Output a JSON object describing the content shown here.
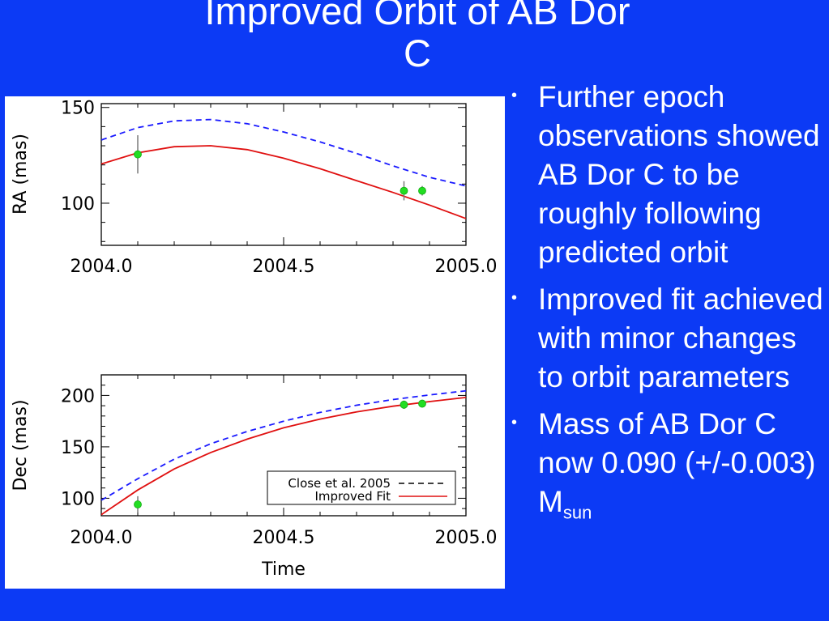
{
  "slide": {
    "title_line1": "Improved Orbit of AB Dor",
    "title_line2": "C",
    "background_color": "#0c3af5",
    "bullet_marker": "•",
    "bullets": [
      {
        "text": "Further epoch observations showed AB Dor C to be roughly following predicted orbit"
      },
      {
        "text": "Improved fit achieved with minor changes to orbit parameters"
      },
      {
        "text_before": "Mass of AB Dor C now 0.090 (+/-0.003) M",
        "subscript": "sun"
      }
    ]
  },
  "chart_data": [
    {
      "type": "line",
      "xlabel": "",
      "ylabel": "RA (mas)",
      "xlim": [
        2004.0,
        2005.0
      ],
      "ylim": [
        78,
        152
      ],
      "x_ticks": [
        "2004.0",
        "2004.5",
        "2005.0"
      ],
      "y_ticks": [
        "100",
        "150"
      ],
      "series": [
        {
          "name": "Close et al. 2005",
          "style": "dashed",
          "color": "#1a1aff",
          "x": [
            2004.0,
            2004.1,
            2004.2,
            2004.3,
            2004.4,
            2004.5,
            2004.6,
            2004.7,
            2004.8,
            2004.9,
            2005.0
          ],
          "y": [
            133.0,
            139.5,
            143.0,
            143.7,
            141.5,
            137.2,
            132.0,
            126.0,
            119.5,
            113.5,
            109.0
          ]
        },
        {
          "name": "Improved Fit",
          "style": "solid",
          "color": "#e01010",
          "x": [
            2004.0,
            2004.1,
            2004.2,
            2004.3,
            2004.4,
            2004.5,
            2004.6,
            2004.7,
            2004.8,
            2004.9,
            2005.0
          ],
          "y": [
            120.5,
            126.3,
            129.5,
            130.0,
            128.0,
            123.5,
            118.0,
            111.8,
            105.6,
            99.0,
            92.0
          ]
        }
      ],
      "points": [
        {
          "x": 2004.1,
          "y": 125.5,
          "yerr": 10
        },
        {
          "x": 2004.83,
          "y": 106.5,
          "yerr": 5
        },
        {
          "x": 2004.88,
          "y": 106.5,
          "yerr": 2.5
        }
      ]
    },
    {
      "type": "line",
      "xlabel": "Time",
      "ylabel": "Dec (mas)",
      "xlim": [
        2004.0,
        2005.0
      ],
      "ylim": [
        83,
        220
      ],
      "x_ticks": [
        "2004.0",
        "2004.5",
        "2005.0"
      ],
      "y_ticks": [
        "100",
        "150",
        "200"
      ],
      "legend": "lower right",
      "series": [
        {
          "name": "Close et al. 2005",
          "style": "dashed",
          "color": "#1a1aff",
          "x": [
            2004.0,
            2004.1,
            2004.2,
            2004.3,
            2004.4,
            2004.5,
            2004.6,
            2004.7,
            2004.8,
            2004.9,
            2005.0
          ],
          "y": [
            98.0,
            119.0,
            138.0,
            153.0,
            165.0,
            175.0,
            183.5,
            190.5,
            196.0,
            200.5,
            204.5
          ]
        },
        {
          "name": "Improved Fit",
          "style": "solid",
          "color": "#e01010",
          "x": [
            2004.0,
            2004.1,
            2004.2,
            2004.3,
            2004.4,
            2004.5,
            2004.6,
            2004.7,
            2004.8,
            2004.9,
            2005.0
          ],
          "y": [
            84.0,
            108.0,
            128.5,
            144.5,
            157.5,
            168.5,
            177.0,
            184.0,
            189.5,
            194.0,
            198.0
          ]
        }
      ],
      "points": [
        {
          "x": 2004.1,
          "y": 94.0,
          "yerr": 8
        },
        {
          "x": 2004.83,
          "y": 191.0,
          "yerr": 4
        },
        {
          "x": 2004.88,
          "y": 192.0,
          "yerr": 2
        }
      ]
    }
  ]
}
